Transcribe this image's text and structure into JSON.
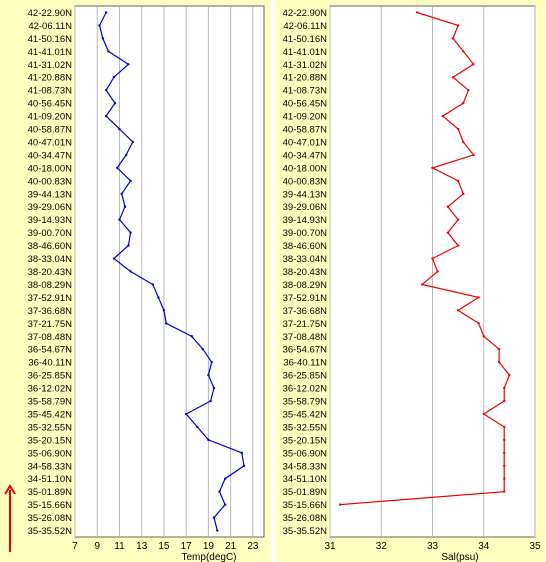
{
  "chart_data": [
    {
      "type": "line",
      "title": "",
      "xlabel": "Temp(degC)",
      "ylabel": "",
      "xticks": [
        7,
        9,
        11,
        13,
        15,
        17,
        19,
        21,
        23
      ],
      "xlim": [
        7,
        24
      ],
      "grid": "vertical",
      "categories": [
        "42-22.90N",
        "42-06.11N",
        "41-50.16N",
        "41-41.01N",
        "41-31.02N",
        "41-20.88N",
        "41-08.73N",
        "40-56.45N",
        "41-09.20N",
        "40-58.87N",
        "40-47.01N",
        "40-34.47N",
        "40-18.00N",
        "40-00.83N",
        "39-44.13N",
        "39-29.06N",
        "39-14.93N",
        "39-00.70N",
        "38-46.60N",
        "38-33.04N",
        "38-20.43N",
        "38-08.29N",
        "37-52.91N",
        "37-36.68N",
        "37-21.75N",
        "37-08.48N",
        "36-54.67N",
        "36-40.11N",
        "36-25.85N",
        "36-12.02N",
        "35-58.79N",
        "35-45.42N",
        "35-32.55N",
        "35-20.15N",
        "35-06.90N",
        "34-58.33N",
        "34-51.10N",
        "35-01.89N",
        "35-15.66N",
        "35-26.08N",
        "35-35.52N"
      ],
      "series": [
        {
          "color": "#0000cc",
          "values": [
            9.8,
            9.2,
            9.5,
            10.0,
            11.8,
            10.5,
            9.8,
            10.6,
            9.8,
            11.0,
            12.2,
            11.6,
            10.8,
            12.0,
            11.2,
            11.5,
            11.0,
            12.0,
            11.8,
            10.5,
            12.0,
            14.0,
            14.5,
            15.0,
            15.2,
            17.5,
            18.5,
            19.3,
            19.0,
            19.5,
            19.2,
            17.0,
            18.0,
            19.0,
            22.0,
            22.2,
            20.5,
            20.0,
            20.5,
            19.5,
            19.8
          ]
        }
      ]
    },
    {
      "type": "line",
      "title": "",
      "xlabel": "Sal(psu)",
      "ylabel": "",
      "xticks": [
        31,
        32,
        33,
        34,
        35
      ],
      "xlim": [
        31,
        35
      ],
      "grid": "vertical",
      "categories": [
        "42-22.90N",
        "42-06.11N",
        "41-50.16N",
        "41-41.01N",
        "41-31.02N",
        "41-20.88N",
        "41-08.73N",
        "40-56.45N",
        "41-09.20N",
        "40-58.87N",
        "40-47.01N",
        "40-34.47N",
        "40-18.00N",
        "40-00.83N",
        "39-44.13N",
        "39-29.06N",
        "39-14.93N",
        "39-00.70N",
        "38-46.60N",
        "38-33.04N",
        "38-20.43N",
        "38-08.29N",
        "37-52.91N",
        "37-36.68N",
        "37-21.75N",
        "37-08.48N",
        "36-54.67N",
        "36-40.11N",
        "36-25.85N",
        "36-12.02N",
        "35-58.79N",
        "35-45.42N",
        "35-32.55N",
        "35-20.15N",
        "35-06.90N",
        "34-58.33N",
        "34-51.10N",
        "35-01.89N",
        "35-15.66N",
        "35-26.08N",
        "35-35.52N"
      ],
      "series": [
        {
          "color": "#ee0000",
          "values": [
            32.7,
            33.5,
            33.4,
            33.6,
            33.8,
            33.4,
            33.7,
            33.6,
            33.2,
            33.5,
            33.6,
            33.8,
            33.0,
            33.5,
            33.6,
            33.3,
            33.5,
            33.3,
            33.5,
            33.0,
            33.1,
            32.8,
            33.9,
            33.5,
            33.9,
            34.0,
            34.3,
            34.3,
            34.5,
            34.4,
            34.4,
            34.0,
            34.4,
            34.4,
            34.4,
            34.4,
            34.4,
            34.4,
            31.2,
            null,
            null
          ]
        }
      ]
    }
  ]
}
